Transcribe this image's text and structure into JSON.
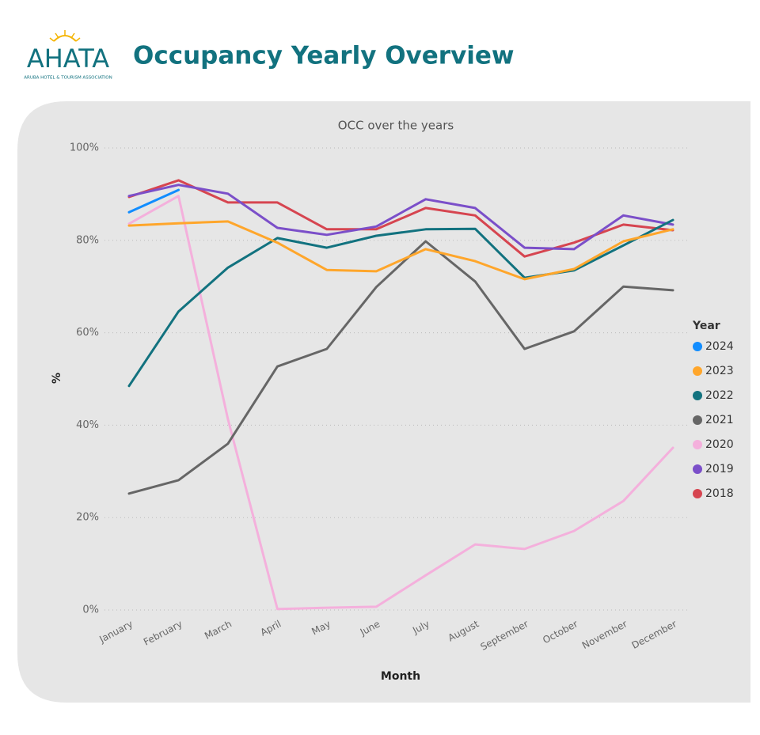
{
  "header": {
    "logo": "AHATA",
    "logo_tagline": "ARUBA HOTEL & TOURISM ASSOCIATION",
    "title": "Occupancy Yearly Overview"
  },
  "chart_data": {
    "type": "line",
    "title": "OCC over the years",
    "x_label": "Month",
    "y_label": "%",
    "categories": [
      "January",
      "February",
      "March",
      "April",
      "May",
      "June",
      "July",
      "August",
      "September",
      "October",
      "November",
      "December"
    ],
    "ylim": [
      0,
      100
    ],
    "yticks": [
      {
        "value": 0,
        "label": "0%"
      },
      {
        "value": 20,
        "label": "20%"
      },
      {
        "value": 40,
        "label": "40%"
      },
      {
        "value": 60,
        "label": "60%"
      },
      {
        "value": 80,
        "label": "80%"
      },
      {
        "value": 100,
        "label": "100%"
      }
    ],
    "grid": true,
    "legend_title": "Year",
    "legend_position": "right",
    "series": [
      {
        "name": "2024",
        "color": "#118dff",
        "values": [
          86.1,
          90.9,
          null,
          null,
          null,
          null,
          null,
          null,
          null,
          null,
          null,
          null
        ]
      },
      {
        "name": "2023",
        "color": "#ffa62b",
        "values": [
          83.2,
          83.7,
          84.1,
          79.5,
          73.6,
          73.3,
          78.1,
          75.5,
          71.6,
          73.8,
          79.8,
          82.4
        ]
      },
      {
        "name": "2022",
        "color": "#12727f",
        "values": [
          48.5,
          64.6,
          74.1,
          80.5,
          78.4,
          81.0,
          82.4,
          82.5,
          71.9,
          73.5,
          78.9,
          84.4
        ]
      },
      {
        "name": "2021",
        "color": "#666666",
        "values": [
          25.2,
          28.1,
          36.0,
          52.7,
          56.5,
          69.9,
          79.8,
          71.1,
          56.5,
          60.3,
          70.0,
          69.2
        ]
      },
      {
        "name": "2020",
        "color": "#f4b0dc",
        "values": [
          83.6,
          89.6,
          41.3,
          0.2,
          0.5,
          0.7,
          7.5,
          14.2,
          13.2,
          17.1,
          23.6,
          35.1
        ]
      },
      {
        "name": "2019",
        "color": "#7b4fc9",
        "values": [
          89.6,
          92.0,
          90.1,
          82.7,
          81.2,
          83.0,
          88.9,
          87.0,
          78.4,
          78.1,
          85.4,
          83.4
        ]
      },
      {
        "name": "2018",
        "color": "#d64550",
        "values": [
          89.4,
          93.0,
          88.2,
          88.2,
          82.4,
          82.4,
          87.0,
          85.4,
          76.5,
          79.5,
          83.4,
          82.2
        ]
      }
    ]
  }
}
